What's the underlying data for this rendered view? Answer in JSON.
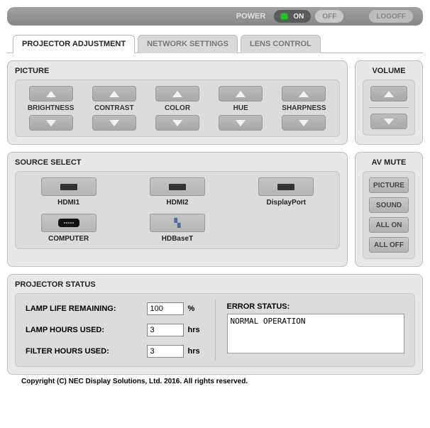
{
  "colors": {
    "panel_bg": "#e8e8e8",
    "panel_body": "#dcdcdc",
    "border": "#bdbdbd",
    "btn_bg_top": "#c5c5c5",
    "btn_bg_bot": "#b5b5b5",
    "led_green": "#1ec81e"
  },
  "topbar": {
    "power_label": "POWER",
    "on_label": "ON",
    "off_label": "OFF",
    "logoff_label": "LOGOFF"
  },
  "tabs": [
    {
      "label": "PROJECTOR ADJUSTMENT",
      "active": true
    },
    {
      "label": "NETWORK SETTINGS",
      "active": false
    },
    {
      "label": "LENS CONTROL",
      "active": false
    }
  ],
  "picture": {
    "title": "PICTURE",
    "controls": [
      "BRIGHTNESS",
      "CONTRAST",
      "COLOR",
      "HUE",
      "SHARPNESS"
    ]
  },
  "volume": {
    "title": "VOLUME"
  },
  "source": {
    "title": "SOURCE SELECT",
    "items": [
      {
        "label": "HDMI1",
        "icon": "hdmi"
      },
      {
        "label": "HDMI2",
        "icon": "hdmi"
      },
      {
        "label": "DisplayPort",
        "icon": "hdmi"
      },
      {
        "label": "COMPUTER",
        "icon": "vga"
      },
      {
        "label": "HDBaseT",
        "icon": "hdbaset"
      }
    ]
  },
  "avmute": {
    "title": "AV MUTE",
    "buttons": [
      "PICTURE",
      "SOUND",
      "ALL ON",
      "ALL OFF"
    ]
  },
  "status": {
    "title": "PROJECTOR STATUS",
    "lamp_life_label": "LAMP LIFE REMAINING:",
    "lamp_life_value": "100",
    "lamp_life_unit": "%",
    "lamp_hours_label": "LAMP HOURS USED:",
    "lamp_hours_value": "3",
    "lamp_hours_unit": "hrs",
    "filter_hours_label": "FILTER HOURS USED:",
    "filter_hours_value": "3",
    "filter_hours_unit": "hrs",
    "error_title": "ERROR STATUS:",
    "error_text": "NORMAL OPERATION"
  },
  "copyright": "Copyright (C) NEC Display Solutions, Ltd. 2016. All rights reserved."
}
